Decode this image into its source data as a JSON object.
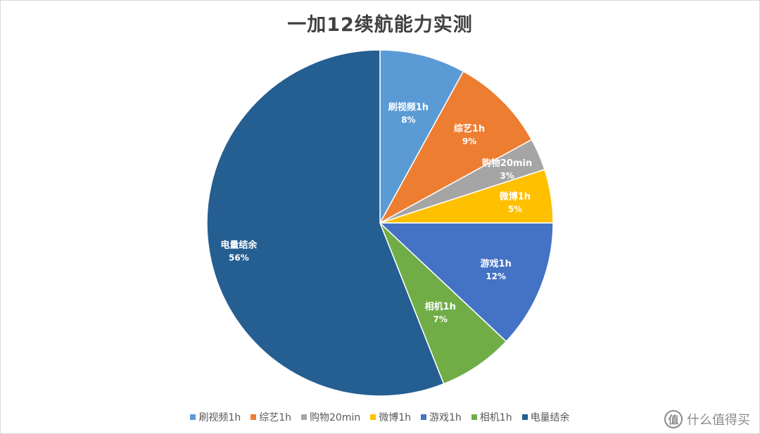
{
  "chart_data": {
    "type": "pie",
    "title": "一加12续航能力实测",
    "categories": [
      "刷视频1h",
      "综艺1h",
      "购物20min",
      "微博1h",
      "游戏1h",
      "相机1h",
      "电量结余"
    ],
    "values": [
      8,
      9,
      3,
      5,
      12,
      7,
      56
    ],
    "value_labels": [
      "8%",
      "9%",
      "3%",
      "5%",
      "12%",
      "7%",
      "56%"
    ],
    "colors": [
      "#5b9bd5",
      "#ed7d31",
      "#a5a5a5",
      "#ffc000",
      "#4472c4",
      "#70ad47",
      "#255e91"
    ],
    "legend_position": "bottom",
    "start_angle": "12 o'clock",
    "direction": "clockwise"
  },
  "watermark": {
    "logo_glyph": "值",
    "text": "什么值得买"
  }
}
